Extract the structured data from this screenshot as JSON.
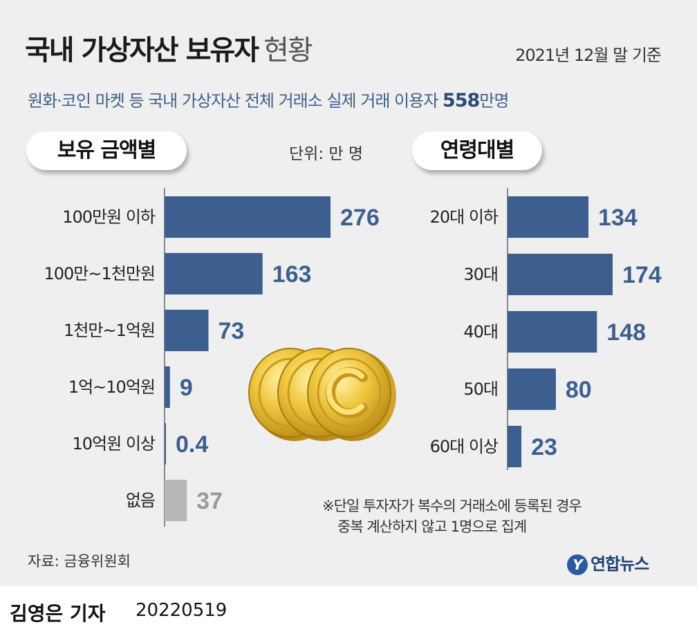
{
  "header": {
    "title_bold": "국내 가상자산 보유자",
    "title_light": "현황",
    "basis": "2021년 12월 말 기준",
    "subtitle_prefix": "원화·코인 마켓 등 국내 가상자산 전체 거래소 실제 거래 이용자 ",
    "subtitle_number": "558",
    "subtitle_suffix": "만명"
  },
  "sections": {
    "amount_label": "보유 금액별",
    "age_label": "연령대별",
    "unit": "단위: 만 명"
  },
  "chart_data": [
    {
      "type": "bar",
      "orientation": "horizontal",
      "title": "보유 금액별",
      "unit": "만 명",
      "categories": [
        "100만원 이하",
        "100만~1천만원",
        "1천만~1억원",
        "1억~10억원",
        "10억원 이상",
        "없음"
      ],
      "values": [
        276,
        163,
        73,
        9,
        0.4,
        37
      ],
      "value_labels": [
        "276",
        "163",
        "73",
        "9",
        "0.4",
        "37"
      ],
      "colors": [
        "#3d5f8f",
        "#3d5f8f",
        "#3d5f8f",
        "#3d5f8f",
        "#3d5f8f",
        "#b8b8b8"
      ]
    },
    {
      "type": "bar",
      "orientation": "horizontal",
      "title": "연령대별",
      "unit": "만 명",
      "categories": [
        "20대 이하",
        "30대",
        "40대",
        "50대",
        "60대 이상"
      ],
      "values": [
        134,
        174,
        148,
        80,
        23
      ],
      "value_labels": [
        "134",
        "174",
        "148",
        "80",
        "23"
      ],
      "colors": [
        "#3d5f8f",
        "#3d5f8f",
        "#3d5f8f",
        "#3d5f8f",
        "#3d5f8f"
      ]
    }
  ],
  "colors": {
    "bar": "#3d5f8f",
    "bar_none": "#b8b8b8",
    "value_text": "#3d5f8f",
    "value_text_none": "#9a9a9a",
    "accent_text": "#3f5f8c"
  },
  "notes": {
    "line1": "※단일 투자자가 복수의 거래소에 등록된 경우",
    "line2": "중복 계산하지 않고 1명으로 집계"
  },
  "source": "자료: 금융위원회",
  "logo": {
    "mark": "Y",
    "text": "연합뉴스"
  },
  "footer": {
    "reporter": "김영은 기자",
    "date": "20220519"
  },
  "icons": [
    "coin-icon"
  ]
}
